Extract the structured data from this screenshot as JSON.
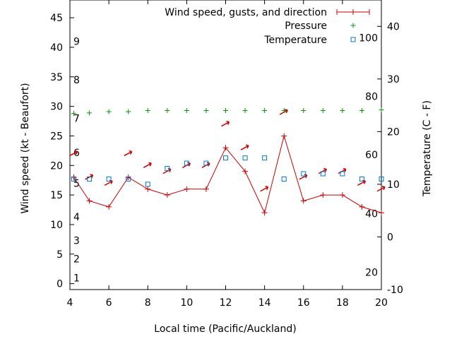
{
  "chart_data": {
    "type": "line",
    "xlabel": "Local time (Pacific/Auckland)",
    "ylabel_left": "Wind speed (kt - Beaufort)",
    "ylabel_right": "Temperature (C - F)",
    "xlim": [
      4,
      20
    ],
    "ylim_left": [
      -1,
      48
    ],
    "ylim_right": [
      -10,
      45
    ],
    "x_ticks": [
      4,
      6,
      8,
      10,
      12,
      14,
      16,
      18,
      20
    ],
    "y_left_ticks": [
      0,
      5,
      10,
      15,
      20,
      25,
      30,
      35,
      40,
      45
    ],
    "y_right_ticks": [
      -10,
      0,
      10,
      20,
      30,
      40
    ],
    "beaufort_labels": [
      {
        "label": "1",
        "kt": 1
      },
      {
        "label": "2",
        "kt": 4.2
      },
      {
        "label": "3",
        "kt": 7.3
      },
      {
        "label": "4",
        "kt": 11.3
      },
      {
        "label": "5",
        "kt": 17
      },
      {
        "label": "6",
        "kt": 22.2
      },
      {
        "label": "7",
        "kt": 28
      },
      {
        "label": "8",
        "kt": 34.5
      },
      {
        "label": "9",
        "kt": 41
      }
    ],
    "fahrenheit_labels": [
      {
        "label": "20",
        "celsius": -6.7
      },
      {
        "label": "40",
        "celsius": 4.4
      },
      {
        "label": "60",
        "celsius": 15.6
      },
      {
        "label": "80",
        "celsius": 26.7
      },
      {
        "label": "100",
        "celsius": 37.8
      }
    ],
    "legend_position": "top-right",
    "series": [
      {
        "name": "Wind speed, gusts, and direction",
        "color": "#cc0000",
        "x": [
          4.2,
          5,
          6,
          7,
          8,
          9,
          10,
          11,
          12,
          13,
          14,
          15,
          16,
          17,
          18,
          19,
          20
        ],
        "values": [
          18,
          14,
          13,
          18,
          16,
          15,
          16,
          16,
          23,
          19,
          12,
          25,
          14,
          15,
          15,
          13,
          12
        ],
        "gusts": [
          {
            "x": 4.2,
            "kt": 22
          },
          {
            "x": 5,
            "kt": 18
          },
          {
            "x": 6,
            "kt": 17
          },
          {
            "x": 7,
            "kt": 22
          },
          {
            "x": 8,
            "kt": 20
          },
          {
            "x": 9,
            "kt": 19
          },
          {
            "x": 10,
            "kt": 20
          },
          {
            "x": 11,
            "kt": 20
          },
          {
            "x": 12,
            "kt": 27
          },
          {
            "x": 13,
            "kt": 23
          },
          {
            "x": 14,
            "kt": 16
          },
          {
            "x": 15,
            "kt": 29
          },
          {
            "x": 16,
            "kt": 18
          },
          {
            "x": 17,
            "kt": 19
          },
          {
            "x": 18,
            "kt": 19
          },
          {
            "x": 19,
            "kt": 17
          },
          {
            "x": 20,
            "kt": 16
          }
        ]
      },
      {
        "name": "Pressure",
        "color": "#009900",
        "x": [
          4.2,
          5,
          6,
          7,
          8,
          9,
          10,
          11,
          12,
          13,
          14,
          15,
          16,
          17,
          18,
          19,
          20
        ],
        "values_kt_axis": [
          28.8,
          28.9,
          29.1,
          29.1,
          29.3,
          29.3,
          29.3,
          29.3,
          29.3,
          29.3,
          29.3,
          29.3,
          29.3,
          29.3,
          29.3,
          29.3,
          29.4
        ]
      },
      {
        "name": "Temperature",
        "color": "#0077cc",
        "x": [
          4.2,
          5,
          6,
          7,
          8,
          9,
          10,
          11,
          12,
          13,
          14,
          15,
          16,
          17,
          18,
          19,
          20
        ],
        "values_celsius": [
          11,
          11,
          11,
          11,
          10,
          13,
          14,
          14,
          15,
          15,
          15,
          11,
          12,
          12,
          12,
          11,
          11
        ]
      }
    ]
  }
}
